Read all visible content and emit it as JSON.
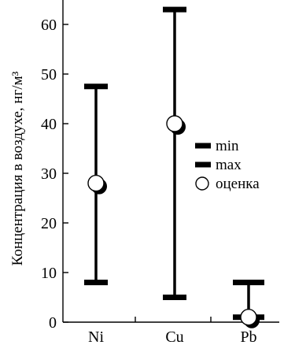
{
  "chart_data": {
    "type": "range",
    "categories": [
      "Ni",
      "Cu",
      "Pb"
    ],
    "ylabel": "Концентрация в воздухе, нг/м³",
    "xlabel": "",
    "ylim": [
      0,
      63
    ],
    "yticks": [
      0,
      10,
      20,
      30,
      40,
      50,
      60
    ],
    "yticks_labels": [
      "0",
      "10",
      "20",
      "30",
      "40",
      "50",
      "60"
    ],
    "series": [
      {
        "name": "min",
        "values": [
          8,
          5,
          1
        ]
      },
      {
        "name": "max",
        "values": [
          47.5,
          63,
          8
        ]
      },
      {
        "name": "оценка",
        "values": [
          28,
          40,
          1
        ]
      }
    ],
    "legend": {
      "position": "right",
      "items": [
        {
          "label": "min",
          "marker": "bar-icon"
        },
        {
          "label": "max",
          "marker": "bar-icon"
        },
        {
          "label": "оценка",
          "marker": "circle-icon"
        }
      ]
    },
    "colors": {
      "ink": "#000000",
      "marker_fill": "#ffffff"
    },
    "grid": false
  }
}
